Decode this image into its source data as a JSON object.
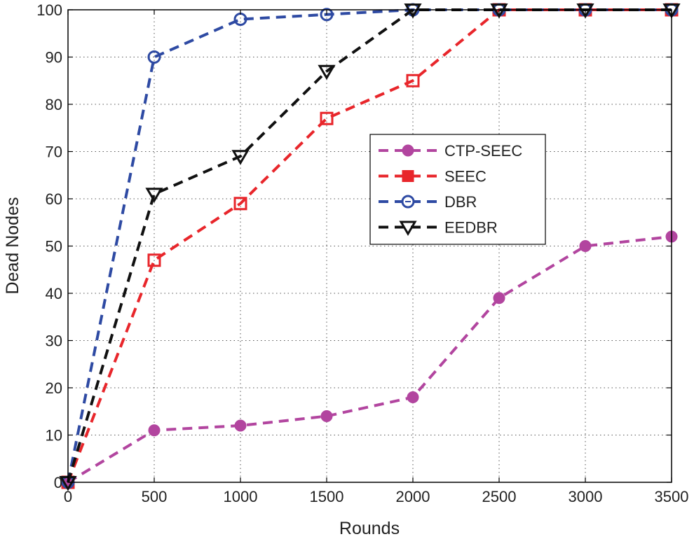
{
  "chart_data": {
    "type": "line",
    "title": "",
    "xlabel": "Rounds",
    "ylabel": "Dead Nodes",
    "xlim": [
      0,
      3500
    ],
    "ylim": [
      0,
      100
    ],
    "xticks": [
      0,
      500,
      1000,
      1500,
      2000,
      2500,
      3000,
      3500
    ],
    "yticks": [
      0,
      10,
      20,
      30,
      40,
      50,
      60,
      70,
      80,
      90,
      100
    ],
    "grid": true,
    "legend_position": "center-right",
    "series": [
      {
        "name": "CTP-SEEC",
        "color": "#b2459f",
        "marker": "circle-filled",
        "x": [
          0,
          500,
          1000,
          1500,
          2000,
          2500,
          3000,
          3500
        ],
        "y": [
          0,
          11,
          12,
          14,
          18,
          39,
          50,
          52
        ]
      },
      {
        "name": "SEEC",
        "color": "#e8262b",
        "marker": "square",
        "x": [
          0,
          500,
          1000,
          1500,
          2000,
          2500,
          3000,
          3500
        ],
        "y": [
          0,
          47,
          59,
          77,
          85,
          100,
          100,
          100
        ]
      },
      {
        "name": "DBR",
        "color": "#2e4aa3",
        "marker": "circle-open",
        "x": [
          0,
          500,
          1000,
          1500,
          2000,
          2500,
          3000,
          3500
        ],
        "y": [
          0,
          90,
          98,
          99,
          100,
          100,
          100,
          100
        ]
      },
      {
        "name": "EEDBR",
        "color": "#111111",
        "marker": "triangle-down",
        "x": [
          0,
          500,
          1000,
          1500,
          2000,
          2500,
          3000,
          3500
        ],
        "y": [
          0,
          61,
          69,
          87,
          100,
          100,
          100,
          100
        ]
      }
    ]
  }
}
